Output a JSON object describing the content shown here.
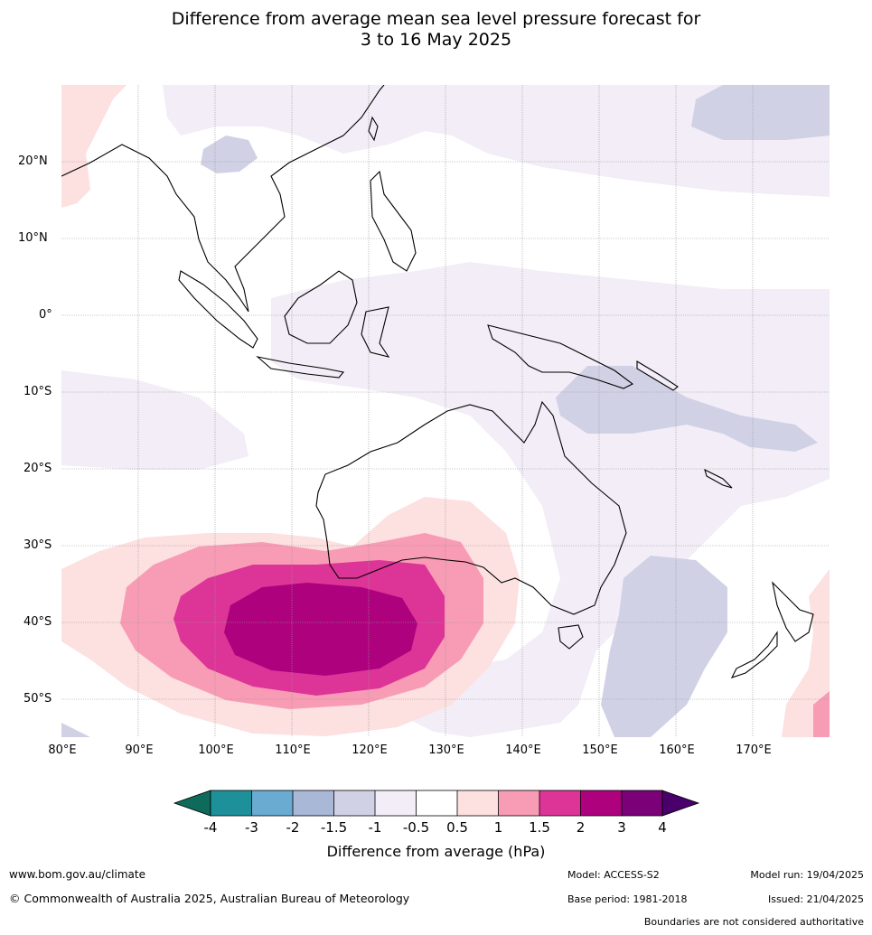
{
  "title_line1": "Difference from average mean sea level pressure forecast for",
  "title_line2": "3 to 16 May 2025",
  "lat_labels": [
    "20°N",
    "10°N",
    "0°",
    "10°S",
    "20°S",
    "30°S",
    "40°S",
    "50°S"
  ],
  "lon_labels": [
    "80°E",
    "90°E",
    "100°E",
    "110°E",
    "120°E",
    "130°E",
    "140°E",
    "150°E",
    "160°E",
    "170°E"
  ],
  "colorbar": {
    "ticks": [
      "-4",
      "-3",
      "-2",
      "-1.5",
      "-1",
      "-0.5",
      "0.5",
      "1",
      "1.5",
      "2",
      "3",
      "4"
    ],
    "colors": [
      "#0e6b5c",
      "#1e9099",
      "#6aabd2",
      "#a9b8d6",
      "#d1d1e6",
      "#f2edf6",
      "#ffffff",
      "#fde0e0",
      "#f89bb5",
      "#dd3497",
      "#ae017e",
      "#7a0177",
      "#49006a"
    ],
    "label": "Difference from average (hPa)"
  },
  "footer": {
    "website": "www.bom.gov.au/climate",
    "copyright": "© Commonwealth of Australia 2025, Australian Bureau of Meteorology",
    "model": "Model: ACCESS-S2",
    "base_period": "Base period: 1981-2018",
    "model_run": "Model run: 19/04/2025",
    "issued": "Issued: 21/04/2025",
    "disclaimer": "Boundaries are not considered authoritative"
  }
}
